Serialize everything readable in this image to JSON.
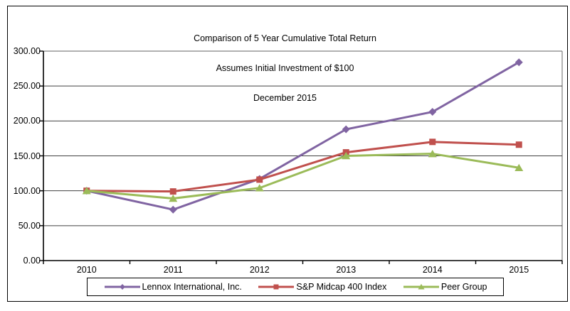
{
  "title": {
    "line1": "Comparison of 5 Year Cumulative Total Return",
    "line2": "Assumes Initial Investment of $100",
    "line3": "December 2015"
  },
  "chart_data": {
    "type": "line",
    "categories": [
      "2010",
      "2011",
      "2012",
      "2013",
      "2014",
      "2015"
    ],
    "series": [
      {
        "name": "Lennox International, Inc.",
        "marker": "diamond",
        "color": "#8064A2",
        "values": [
          100.0,
          73.0,
          117.0,
          188.0,
          213.0,
          284.0
        ]
      },
      {
        "name": "S&P Midcap 400 Index",
        "marker": "square",
        "color": "#C0504D",
        "values": [
          100.0,
          99.0,
          116.0,
          155.0,
          170.0,
          166.0
        ]
      },
      {
        "name": "Peer Group",
        "marker": "triangle",
        "color": "#9BBB59",
        "values": [
          100.0,
          89.0,
          104.0,
          150.0,
          153.0,
          133.0
        ]
      }
    ],
    "ylim": [
      0,
      300
    ],
    "y_tick_step": 50,
    "y_tick_labels": [
      "0.00",
      "50.00",
      "100.00",
      "150.00",
      "200.00",
      "250.00",
      "300.00"
    ],
    "grid": "horizontal",
    "legend_position": "bottom",
    "axis_color": "#000000",
    "gridline_color": "#404040",
    "plot_border_color": "#808080",
    "background_color": "#FFFFFF"
  }
}
